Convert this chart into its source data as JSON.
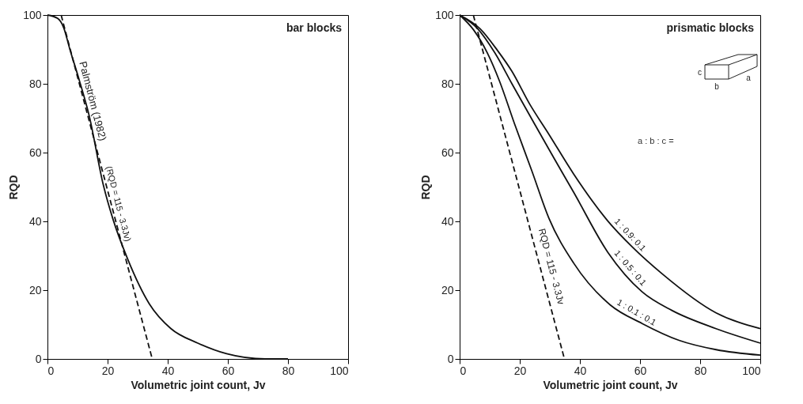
{
  "chart_data": [
    {
      "type": "line",
      "title": "bar blocks",
      "xlabel": "Volumetric joint count,  Jv",
      "ylabel": "RQD",
      "xlim": [
        0,
        100
      ],
      "ylim": [
        0,
        100
      ],
      "xticks": [
        0,
        20,
        40,
        60,
        80,
        100
      ],
      "yticks": [
        0,
        20,
        40,
        60,
        80,
        100
      ],
      "grid": false,
      "marker": "none",
      "annotations": [
        "Palmström (1982)",
        "(RQD = 115 - 3.3Jv)"
      ],
      "series": [
        {
          "color": "#111111",
          "line_style": "solid",
          "x": [
            0,
            3.4,
            5.4,
            7.4,
            10.6,
            13.8,
            18.6,
            21.8,
            26.7,
            33.9,
            41.1,
            50,
            59.6,
            72.4,
            80
          ],
          "values": [
            100,
            99,
            96.3,
            90.2,
            81,
            71,
            50.5,
            40.6,
            29,
            16,
            8.8,
            4.6,
            1.5,
            0,
            0
          ]
        },
        {
          "color": "#111111",
          "line_style": "dashed",
          "x": [
            4.55,
            34.85
          ],
          "values": [
            100,
            0
          ]
        }
      ]
    },
    {
      "type": "line",
      "title": "prismatic blocks",
      "xlabel": "Volumetric joint count,  Jv",
      "ylabel": "RQD",
      "xlim": [
        0,
        100
      ],
      "ylim": [
        0,
        100
      ],
      "xticks": [
        0,
        20,
        40,
        60,
        80,
        100
      ],
      "yticks": [
        0,
        20,
        40,
        60,
        80,
        100
      ],
      "grid": false,
      "marker": "none",
      "annotations": [
        "RQD = 115 - 3.3Jv",
        "a : b : c =",
        "c",
        "b",
        "a"
      ],
      "series": [
        {
          "name": "1 : 0.9: 0.1",
          "color": "#111111",
          "line_style": "solid",
          "x": [
            0,
            6.8,
            12.5,
            17.4,
            23.1,
            29.7,
            37.9,
            49.3,
            57.5,
            67.3,
            85.3,
            100
          ],
          "values": [
            100,
            96,
            89.8,
            83.6,
            74.4,
            65.3,
            53.8,
            40.1,
            32.5,
            24.8,
            13.4,
            8.8
          ]
        },
        {
          "name": "1 : 0.5 : 0.1",
          "color": "#111111",
          "line_style": "solid",
          "x": [
            0,
            6,
            11.7,
            17.4,
            24.8,
            31.3,
            37.9,
            49.3,
            60.7,
            70.6,
            85.3,
            100
          ],
          "values": [
            100,
            96,
            89,
            80,
            68.5,
            58.5,
            48.5,
            31,
            19.5,
            14.1,
            8.8,
            4.6
          ]
        },
        {
          "name": "1 : 0.1 : 0.1",
          "color": "#111111",
          "line_style": "solid",
          "x": [
            0,
            4.7,
            9.2,
            13.3,
            18.2,
            24,
            29.7,
            37.9,
            50.1,
            60.7,
            73,
            85.3,
            100
          ],
          "values": [
            100,
            95.6,
            89,
            80.7,
            68.5,
            54.7,
            40.9,
            27.9,
            15.7,
            10.3,
            5.4,
            2.7,
            1.1
          ]
        },
        {
          "color": "#111111",
          "line_style": "dashed",
          "x": [
            4.55,
            34.85
          ],
          "values": [
            100,
            0
          ]
        }
      ]
    }
  ]
}
